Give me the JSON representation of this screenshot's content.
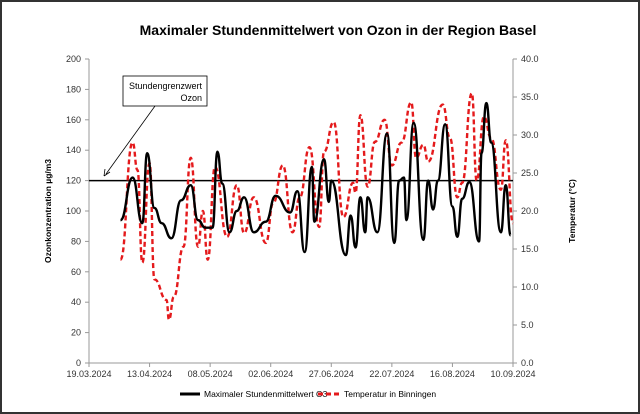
{
  "chart_data": {
    "type": "line",
    "title": "Maximaler Stundenmittelwert von Ozon in der Region Basel",
    "ylabel": "Ozonkonzentration  µg/m3",
    "y2label": "Temperatur (°C)",
    "xlim": [
      "2024-03-19",
      "2024-09-10"
    ],
    "ylim": [
      0,
      200
    ],
    "y2lim": [
      0,
      40
    ],
    "x_ticks": [
      "19.03.2024",
      "13.04.2024",
      "08.05.2024",
      "02.06.2024",
      "27.06.2024",
      "22.07.2024",
      "16.08.2024",
      "10.09.2024"
    ],
    "y_ticks": [
      "0",
      "20",
      "40",
      "60",
      "80",
      "100",
      "120",
      "140",
      "160",
      "180",
      "200"
    ],
    "y2_ticks": [
      "0.0",
      "5.0",
      "10.0",
      "15.0",
      "20.0",
      "25.0",
      "30.0",
      "35.0",
      "40.0"
    ],
    "grid": false,
    "legend_position": "bottom",
    "threshold": {
      "value": 120,
      "label_line1": "Stundengrenzwert",
      "label_line2": "Ozon"
    },
    "series": [
      {
        "name": "Maximaler Stundenmittelwert O3",
        "axis": "left",
        "color": "#000000",
        "style": "solid",
        "points": [
          [
            "2024-04-01",
            94
          ],
          [
            "2024-04-06",
            122
          ],
          [
            "2024-04-10",
            92
          ],
          [
            "2024-04-12",
            138
          ],
          [
            "2024-04-15",
            102
          ],
          [
            "2024-04-18",
            92
          ],
          [
            "2024-04-22",
            82
          ],
          [
            "2024-04-26",
            107
          ],
          [
            "2024-04-30",
            117
          ],
          [
            "2024-05-03",
            94
          ],
          [
            "2024-05-06",
            89
          ],
          [
            "2024-05-09",
            89
          ],
          [
            "2024-05-11",
            139
          ],
          [
            "2024-05-13",
            118
          ],
          [
            "2024-05-16",
            86
          ],
          [
            "2024-05-19",
            100
          ],
          [
            "2024-05-22",
            109
          ],
          [
            "2024-05-26",
            86
          ],
          [
            "2024-05-31",
            93
          ],
          [
            "2024-06-04",
            110
          ],
          [
            "2024-06-10",
            99
          ],
          [
            "2024-06-13",
            113
          ],
          [
            "2024-06-16",
            73
          ],
          [
            "2024-06-19",
            129
          ],
          [
            "2024-06-20",
            93
          ],
          [
            "2024-06-24",
            134
          ],
          [
            "2024-06-26",
            106
          ],
          [
            "2024-06-27",
            120
          ],
          [
            "2024-07-03",
            71
          ],
          [
            "2024-07-05",
            97
          ],
          [
            "2024-07-07",
            76
          ],
          [
            "2024-07-09",
            109
          ],
          [
            "2024-07-11",
            86
          ],
          [
            "2024-07-12",
            109
          ],
          [
            "2024-07-16",
            86
          ],
          [
            "2024-07-20",
            151
          ],
          [
            "2024-07-23",
            79
          ],
          [
            "2024-07-25",
            120
          ],
          [
            "2024-07-27",
            122
          ],
          [
            "2024-07-28",
            94
          ],
          [
            "2024-07-31",
            158
          ],
          [
            "2024-08-04",
            81
          ],
          [
            "2024-08-06",
            120
          ],
          [
            "2024-08-08",
            101
          ],
          [
            "2024-08-10",
            120
          ],
          [
            "2024-08-13",
            157
          ],
          [
            "2024-08-16",
            103
          ],
          [
            "2024-08-18",
            83
          ],
          [
            "2024-08-20",
            108
          ],
          [
            "2024-08-23",
            119
          ],
          [
            "2024-08-27",
            80
          ],
          [
            "2024-08-28",
            138
          ],
          [
            "2024-08-30",
            171
          ],
          [
            "2024-09-01",
            145
          ],
          [
            "2024-09-05",
            86
          ],
          [
            "2024-09-07",
            117
          ],
          [
            "2024-09-09",
            84
          ]
        ]
      },
      {
        "name": "Temperatur in Binningen",
        "axis": "right",
        "color": "#e41a1c",
        "style": "dashed",
        "points": [
          [
            "2024-04-01",
            13.6
          ],
          [
            "2024-04-06",
            29.0
          ],
          [
            "2024-04-08",
            25.4
          ],
          [
            "2024-04-10",
            13.2
          ],
          [
            "2024-04-13",
            26.3
          ],
          [
            "2024-04-15",
            11.0
          ],
          [
            "2024-04-20",
            8.3
          ],
          [
            "2024-04-21",
            5.7
          ],
          [
            "2024-04-23",
            8.7
          ],
          [
            "2024-04-27",
            15.3
          ],
          [
            "2024-04-30",
            27.0
          ],
          [
            "2024-05-03",
            15.3
          ],
          [
            "2024-05-05",
            20.0
          ],
          [
            "2024-05-07",
            13.6
          ],
          [
            "2024-05-10",
            25.8
          ],
          [
            "2024-05-15",
            16.6
          ],
          [
            "2024-05-19",
            23.4
          ],
          [
            "2024-05-22",
            17.1
          ],
          [
            "2024-05-26",
            21.8
          ],
          [
            "2024-05-31",
            15.8
          ],
          [
            "2024-06-03",
            21.0
          ],
          [
            "2024-06-07",
            26.0
          ],
          [
            "2024-06-11",
            17.2
          ],
          [
            "2024-06-14",
            21.8
          ],
          [
            "2024-06-18",
            28.4
          ],
          [
            "2024-06-22",
            17.9
          ],
          [
            "2024-06-24",
            27.8
          ],
          [
            "2024-06-28",
            31.7
          ],
          [
            "2024-07-02",
            19.2
          ],
          [
            "2024-07-06",
            23.7
          ],
          [
            "2024-07-07",
            22.4
          ],
          [
            "2024-07-09",
            32.6
          ],
          [
            "2024-07-12",
            23.2
          ],
          [
            "2024-07-15",
            29.1
          ],
          [
            "2024-07-19",
            32.0
          ],
          [
            "2024-07-22",
            26.0
          ],
          [
            "2024-07-26",
            29.0
          ],
          [
            "2024-07-30",
            34.3
          ],
          [
            "2024-08-01",
            27.0
          ],
          [
            "2024-08-04",
            28.7
          ],
          [
            "2024-08-06",
            26.5
          ],
          [
            "2024-08-12",
            34.0
          ],
          [
            "2024-08-15",
            29.6
          ],
          [
            "2024-08-18",
            21.8
          ],
          [
            "2024-08-20",
            23.7
          ],
          [
            "2024-08-24",
            35.5
          ],
          [
            "2024-08-26",
            24.0
          ],
          [
            "2024-08-29",
            32.4
          ],
          [
            "2024-09-01",
            29.6
          ],
          [
            "2024-09-05",
            22.8
          ],
          [
            "2024-09-07",
            29.3
          ],
          [
            "2024-09-10",
            18.4
          ]
        ]
      }
    ]
  }
}
